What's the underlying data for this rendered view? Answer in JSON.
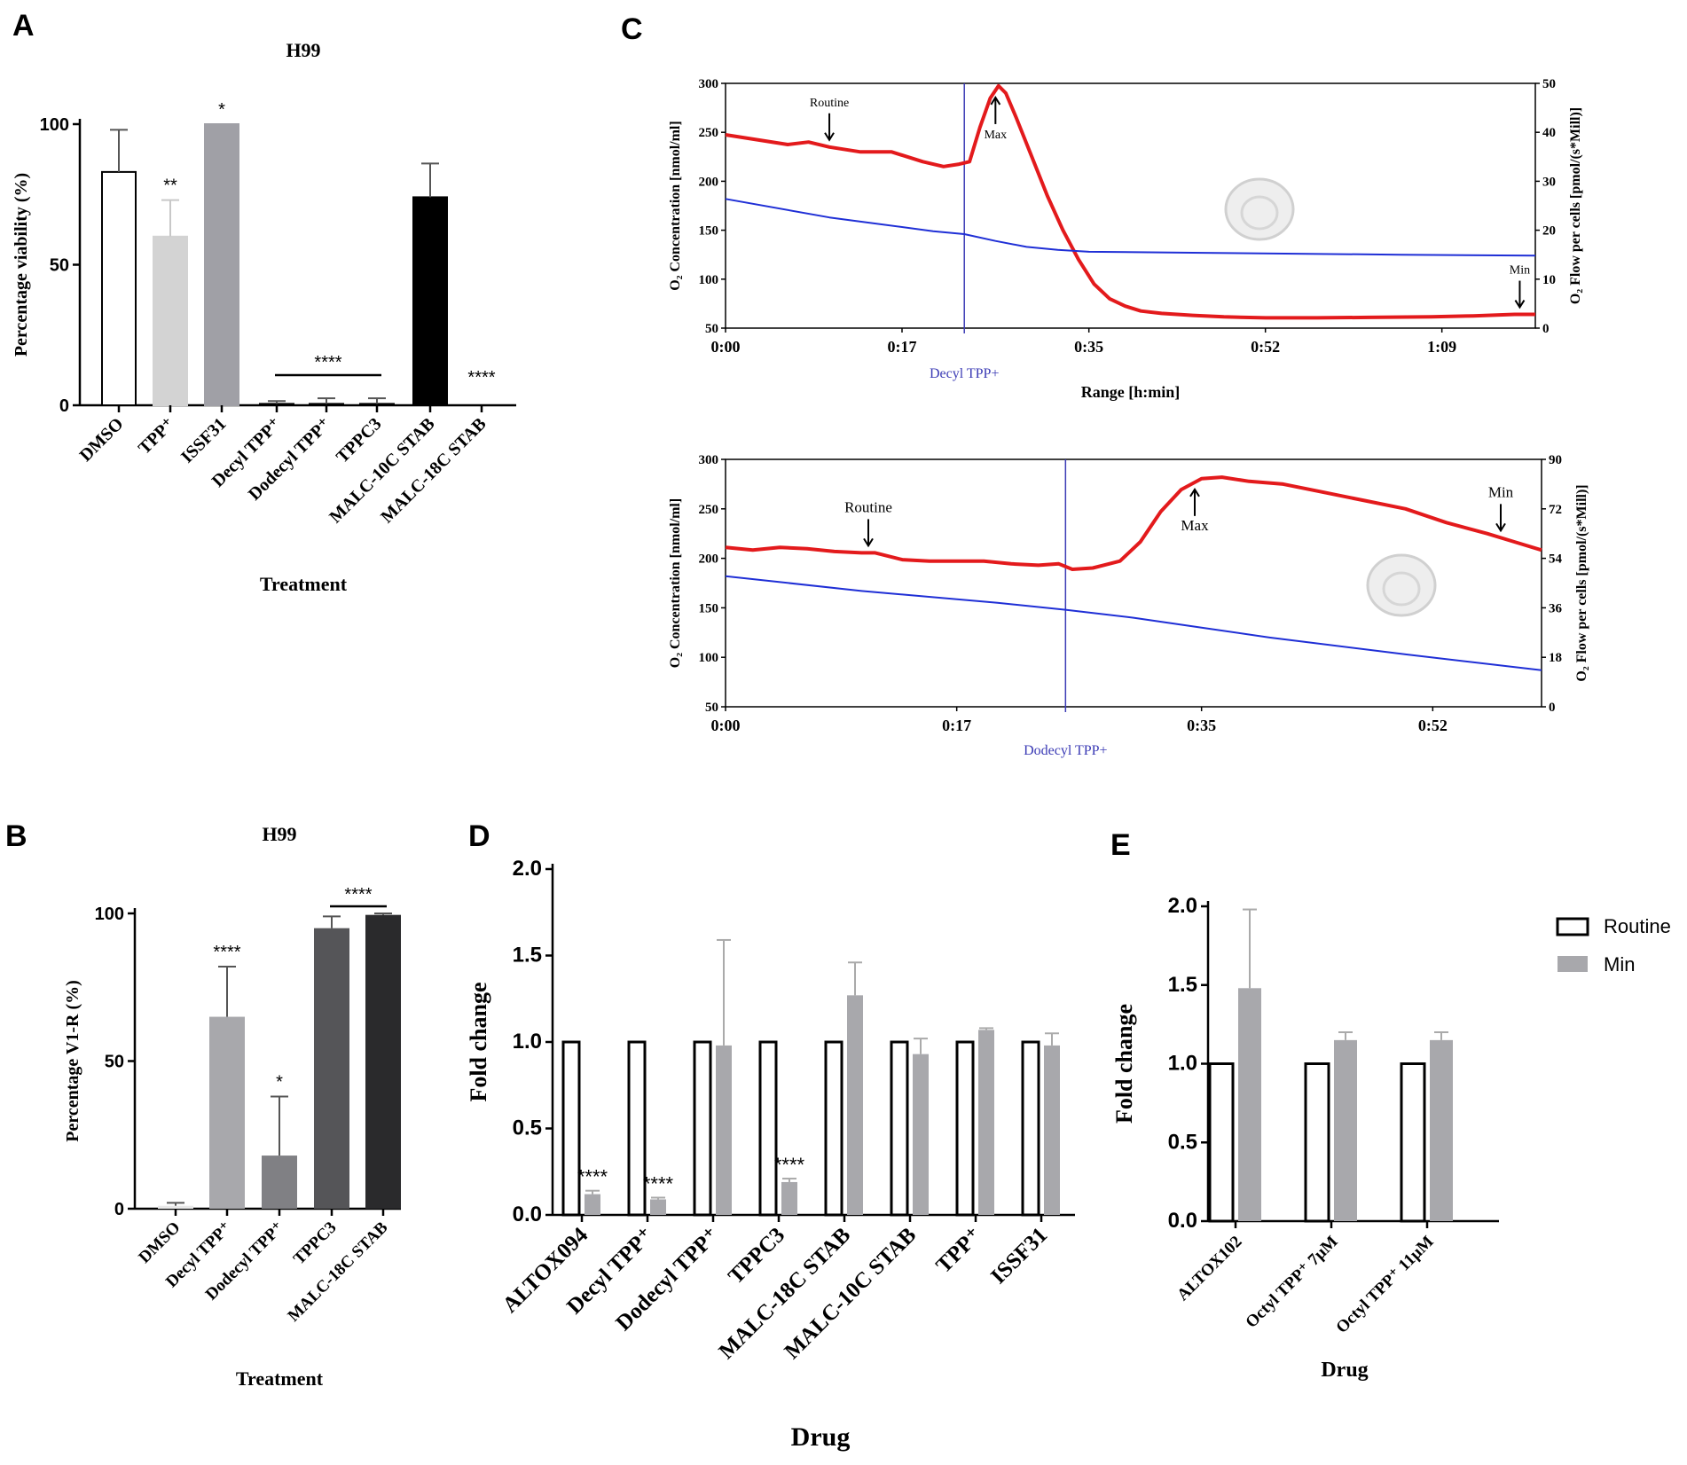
{
  "panels": {
    "A": {
      "letter": "A",
      "chart_title": "H99",
      "sig_group": "****",
      "sig_last": "****"
    },
    "B": {
      "letter": "B",
      "chart_title": "H99",
      "sig_group": "****"
    },
    "C": {
      "letter": "C",
      "top_marker_label": "Decyl TPP+",
      "bottom_marker_label": "Dodecyl TPP+",
      "routine": "Routine",
      "max": "Max",
      "min": "Min"
    },
    "D": {
      "letter": "D"
    },
    "E": {
      "letter": "E"
    }
  },
  "legend": {
    "routine": "Routine",
    "min": "Min"
  },
  "colors": {
    "red_trace": "#e31a1c",
    "blue_trace": "#1f2fd6",
    "marker_line": "#3b3bb5",
    "marker_text": "#3b3bb5",
    "black": "#000000",
    "grey_bar": "#a8a8ac",
    "light_grey": "#d3d3d3"
  },
  "chart_data": [
    {
      "id": "A",
      "type": "bar",
      "title": "H99",
      "xlabel": "Treatment",
      "ylabel": "Percentage viability (%)",
      "ylim": [
        0,
        100
      ],
      "yticks": [
        "0",
        "50",
        "100"
      ],
      "categories": [
        "DMSO",
        "TPP⁺",
        "ISSF31",
        "Decyl TPP⁺",
        "Dodecyl TPP⁺",
        "TPPC3",
        "MALC-10C STAB",
        "MALC-18C STAB"
      ],
      "values": [
        83,
        60,
        100,
        0.5,
        0.5,
        0.5,
        74,
        0
      ],
      "errors": [
        15,
        13,
        0,
        1,
        2,
        2,
        12,
        0
      ],
      "colors": [
        "#ffffff",
        "#d3d3d3",
        "#a0a0a6",
        "#ffffff",
        "#ffffff",
        "#ffffff",
        "#000000",
        "#ffffff"
      ],
      "annotations": [
        "",
        "**",
        "*",
        "",
        "",
        "",
        "",
        ""
      ]
    },
    {
      "id": "B",
      "type": "bar",
      "title": "H99",
      "xlabel": "Treatment",
      "ylabel": "Percentage V1-R (%)",
      "ylim": [
        0,
        100
      ],
      "yticks": [
        "0",
        "50",
        "100"
      ],
      "categories": [
        "DMSO",
        "Decyl TPP⁺",
        "Dodecyl TPP⁺",
        "TPPC3",
        "MALC-18C STAB"
      ],
      "values": [
        1,
        65,
        18,
        95,
        99.5
      ],
      "errors": [
        1,
        17,
        20,
        4,
        0.5
      ],
      "colors": [
        "#e8e8e8",
        "#a8a8ac",
        "#808084",
        "#555558",
        "#2a2a2c"
      ],
      "annotations": [
        "",
        "****",
        "*",
        "",
        ""
      ]
    },
    {
      "id": "C-top",
      "type": "line",
      "xlabel": "Range [h:min]",
      "ylabel_left": "O₂ Concentration [nmol/ml]",
      "ylabel_right": "O₂ Flow per cells [pmol/(s*Mill)]",
      "xticks": [
        "0:00",
        "0:17",
        "0:35",
        "0:52",
        "1:09"
      ],
      "xtick_minutes": [
        0,
        17,
        35,
        52,
        69
      ],
      "xlim_minutes": [
        0,
        78
      ],
      "ylim_left": [
        50,
        300
      ],
      "yticks_left": [
        "50",
        "100",
        "150",
        "200",
        "250",
        "300"
      ],
      "ylim_right": [
        0,
        50
      ],
      "yticks_right": [
        "0",
        "10",
        "20",
        "30",
        "40",
        "50"
      ],
      "marker_minute": 23,
      "series": [
        {
          "name": "O2 flow per cells",
          "axis": "right",
          "color": "#e31a1c",
          "x": [
            0,
            3,
            6,
            8,
            10,
            13,
            16,
            19,
            21,
            22.5,
            23.5,
            24.5,
            25.5,
            26.3,
            27,
            28,
            29.5,
            31,
            32.5,
            34,
            35.5,
            37,
            38.5,
            40,
            42,
            45,
            48,
            52,
            57,
            62,
            68,
            72,
            76,
            78
          ],
          "y": [
            39.5,
            38.5,
            37.5,
            38,
            37,
            36,
            36,
            34,
            33,
            33.5,
            34,
            41,
            47,
            49.5,
            48,
            43,
            35,
            27,
            20,
            14,
            9,
            6,
            4.5,
            3.5,
            3,
            2.6,
            2.3,
            2.1,
            2.1,
            2.2,
            2.3,
            2.5,
            2.8,
            2.8
          ]
        },
        {
          "name": "O2 concentration",
          "axis": "left",
          "color": "#1f2fd6",
          "x": [
            0,
            10,
            20,
            23,
            26,
            29,
            32,
            35,
            45,
            55,
            65,
            78
          ],
          "y": [
            182,
            163,
            149,
            146,
            139,
            133,
            130,
            128,
            127,
            126,
            125,
            124
          ]
        }
      ],
      "labels": {
        "routine_minute": 10,
        "max_minute": 26,
        "min_minute": 76.5
      }
    },
    {
      "id": "C-bottom",
      "type": "line",
      "xlabel": "",
      "ylabel_left": "O₂ Concentration [nmol/ml]",
      "ylabel_right": "O₂ Flow per cells [pmol/(s*Mill)]",
      "xticks": [
        "0:00",
        "0:17",
        "0:35",
        "0:52"
      ],
      "xtick_minutes": [
        0,
        17,
        35,
        52
      ],
      "xlim_minutes": [
        0,
        60
      ],
      "ylim_left": [
        50,
        300
      ],
      "yticks_left": [
        "50",
        "100",
        "150",
        "200",
        "250",
        "300"
      ],
      "ylim_right": [
        0,
        90
      ],
      "yticks_right": [
        "0",
        "18",
        "36",
        "54",
        "72",
        "90"
      ],
      "marker_minute": 25,
      "series": [
        {
          "name": "O2 flow per cells",
          "axis": "right",
          "color": "#e31a1c",
          "x": [
            0,
            2,
            4,
            6,
            8,
            10,
            11,
            13,
            15,
            17,
            19,
            21,
            23,
            24.5,
            25.5,
            27,
            29,
            30.5,
            32,
            33.5,
            35,
            36.5,
            38.5,
            41,
            44,
            47,
            50,
            53,
            56,
            58,
            60
          ],
          "y": [
            58,
            57,
            58,
            57.5,
            56.5,
            56,
            56,
            53.5,
            53,
            53,
            53,
            52,
            51.5,
            52,
            50,
            50.5,
            53,
            60,
            71,
            79,
            83,
            83.5,
            82,
            81,
            78,
            75,
            72,
            67,
            63,
            60,
            57
          ]
        },
        {
          "name": "O2 concentration",
          "axis": "left",
          "color": "#1f2fd6",
          "x": [
            0,
            10,
            20,
            25,
            30,
            35,
            40,
            50,
            60
          ],
          "y": [
            182,
            167,
            155,
            148,
            140,
            130,
            120,
            103,
            87
          ]
        }
      ],
      "labels": {
        "routine_minute": 10.5,
        "max_minute": 34.5,
        "min_minute": 57
      }
    },
    {
      "id": "D",
      "type": "bar",
      "xlabel": "Drug",
      "ylabel": "Fold change",
      "ylim": [
        0,
        2.0
      ],
      "yticks": [
        "0.0",
        "0.5",
        "1.0",
        "1.5",
        "2.0"
      ],
      "categories": [
        "ALTOX094",
        "Decyl TPP⁺",
        "Dodecyl TPP⁺",
        "TPPC3",
        "MALC-18C STAB",
        "MALC-10C STAB",
        "TPP⁺",
        "ISSF31"
      ],
      "series": [
        {
          "name": "Routine",
          "values": [
            1.0,
            1.0,
            1.0,
            1.0,
            1.0,
            1.0,
            1.0,
            1.0
          ],
          "errors": [
            0,
            0,
            0,
            0,
            0,
            0,
            0,
            0
          ]
        },
        {
          "name": "Min",
          "values": [
            0.12,
            0.09,
            0.98,
            0.19,
            1.27,
            0.93,
            1.07,
            0.98
          ],
          "errors": [
            0.02,
            0.01,
            0.61,
            0.02,
            0.19,
            0.09,
            0.01,
            0.07
          ]
        }
      ],
      "annotations": [
        "****",
        "****",
        "",
        "****",
        "",
        "",
        "",
        ""
      ]
    },
    {
      "id": "E",
      "type": "bar",
      "xlabel": "Drug",
      "ylabel": "Fold change",
      "ylim": [
        0,
        2.0
      ],
      "yticks": [
        "0.0",
        "0.5",
        "1.0",
        "1.5",
        "2.0"
      ],
      "categories": [
        "ALTOX102",
        "Octyl TPP⁺ 7μM",
        "Octyl TPP⁺ 11μM"
      ],
      "series": [
        {
          "name": "Routine",
          "values": [
            1.0,
            1.0,
            1.0
          ],
          "errors": [
            0,
            0,
            0
          ]
        },
        {
          "name": "Min",
          "values": [
            1.48,
            1.15,
            1.15
          ],
          "errors": [
            0.5,
            0.05,
            0.05
          ]
        }
      ]
    }
  ]
}
